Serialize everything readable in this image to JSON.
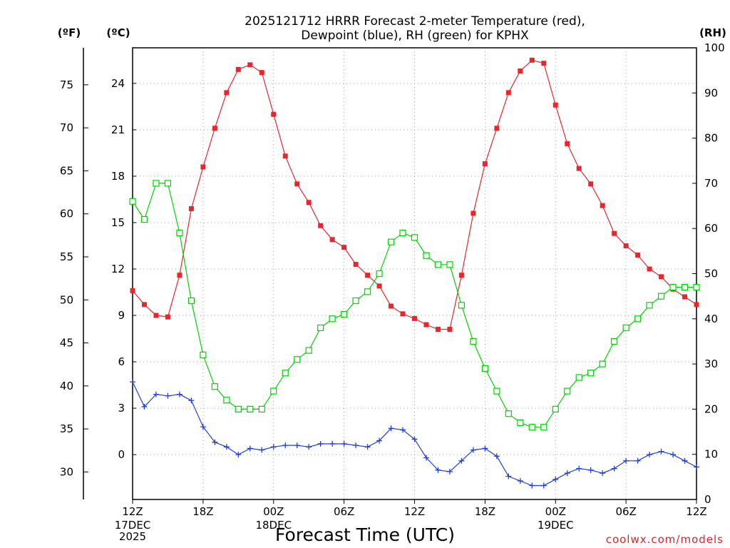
{
  "title_line1": "2025121712 HRRR Forecast 2-meter Temperature (red),",
  "title_line2": "Dewpoint (blue), RH (green) for KPHX",
  "units": {
    "fahrenheit": "(ºF)",
    "celsius": "(ºC)",
    "rh": "(RH)"
  },
  "xlabel": "Forecast Time (UTC)",
  "credit": "coolwx.com/models",
  "date_labels": [
    {
      "hour": 0,
      "lines": [
        "17DEC",
        "2025"
      ]
    },
    {
      "hour": 12,
      "lines": [
        "18DEC"
      ]
    },
    {
      "hour": 36,
      "lines": [
        "19DEC"
      ]
    }
  ],
  "colors": {
    "temperature": "#e8262b",
    "dewpoint": "#1f3ee0",
    "rh": "#00d400"
  },
  "chart_data": {
    "type": "line",
    "x_hours_from_start": [
      0,
      1,
      2,
      3,
      4,
      5,
      6,
      7,
      8,
      9,
      10,
      11,
      12,
      13,
      14,
      15,
      16,
      17,
      18,
      19,
      20,
      21,
      22,
      23,
      24,
      25,
      26,
      27,
      28,
      29,
      30,
      31,
      32,
      33,
      34,
      35,
      36,
      37,
      38,
      39,
      40,
      41,
      42,
      43,
      44,
      45,
      46,
      47,
      48
    ],
    "xlim": [
      0,
      48
    ],
    "x_ticks": [
      {
        "hour": 0,
        "label": "12Z"
      },
      {
        "hour": 6,
        "label": "18Z"
      },
      {
        "hour": 12,
        "label": "00Z"
      },
      {
        "hour": 18,
        "label": "06Z"
      },
      {
        "hour": 24,
        "label": "12Z"
      },
      {
        "hour": 30,
        "label": "18Z"
      },
      {
        "hour": 36,
        "label": "00Z"
      },
      {
        "hour": 42,
        "label": "06Z"
      },
      {
        "hour": 48,
        "label": "12Z"
      }
    ],
    "celsius_axis": {
      "range": [
        -2.9,
        26.3
      ],
      "ticks": [
        0,
        3,
        6,
        9,
        12,
        15,
        18,
        21,
        24
      ]
    },
    "fahrenheit_axis": {
      "range": [
        26.8,
        79.3
      ],
      "ticks": [
        30,
        35,
        40,
        45,
        50,
        55,
        60,
        65,
        70,
        75
      ]
    },
    "rh_axis": {
      "range": [
        0,
        100
      ],
      "ticks": [
        0,
        10,
        20,
        30,
        40,
        50,
        60,
        70,
        80,
        90,
        100
      ]
    },
    "series": [
      {
        "name": "2-meter Temperature",
        "axis": "celsius",
        "marker": "filled-square",
        "values": [
          10.6,
          9.7,
          9.0,
          8.9,
          11.6,
          15.9,
          18.6,
          21.1,
          23.4,
          24.9,
          25.2,
          24.7,
          22.0,
          19.3,
          17.5,
          16.3,
          14.8,
          13.9,
          13.4,
          12.3,
          11.6,
          10.9,
          9.6,
          9.1,
          8.8,
          8.4,
          8.1,
          8.1,
          11.6,
          15.6,
          18.8,
          21.1,
          23.4,
          24.8,
          25.5,
          25.3,
          22.6,
          20.1,
          18.5,
          17.5,
          16.1,
          14.3,
          13.5,
          12.9,
          12.0,
          11.5,
          10.7,
          10.2,
          9.7
        ]
      },
      {
        "name": "Dewpoint",
        "axis": "celsius",
        "marker": "plus",
        "values": [
          4.7,
          3.1,
          3.9,
          3.8,
          3.9,
          3.5,
          1.8,
          0.8,
          0.5,
          0.0,
          0.4,
          0.3,
          0.5,
          0.6,
          0.6,
          0.5,
          0.7,
          0.7,
          0.7,
          0.6,
          0.5,
          0.9,
          1.7,
          1.6,
          1.0,
          -0.2,
          -1.0,
          -1.1,
          -0.4,
          0.3,
          0.4,
          -0.1,
          -1.4,
          -1.7,
          -2.0,
          -2.0,
          -1.6,
          -1.2,
          -0.9,
          -1.0,
          -1.2,
          -0.9,
          -0.4,
          -0.4,
          0.0,
          0.2,
          0.0,
          -0.4,
          -0.8
        ]
      },
      {
        "name": "RH",
        "axis": "rh",
        "marker": "open-square",
        "values": [
          66,
          62,
          70,
          70,
          59,
          44,
          32,
          25,
          22,
          20,
          20,
          20,
          24,
          28,
          31,
          33,
          38,
          40,
          41,
          44,
          46,
          50,
          57,
          59,
          58,
          54,
          52,
          52,
          43,
          35,
          29,
          24,
          19,
          17,
          16,
          16,
          20,
          24,
          27,
          28,
          30,
          35,
          38,
          40,
          43,
          45,
          47,
          47,
          47
        ]
      }
    ]
  }
}
